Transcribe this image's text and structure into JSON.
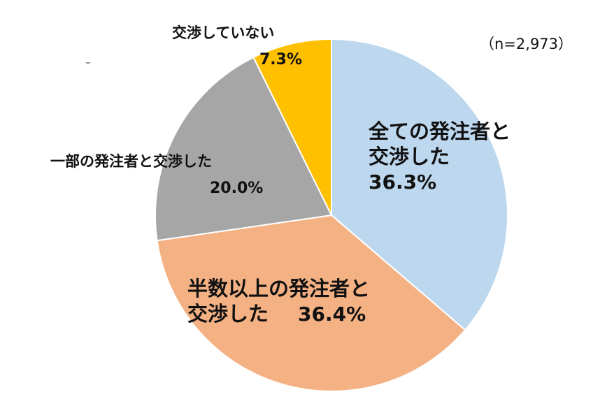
{
  "chart_data": {
    "type": "pie",
    "title": "",
    "note": "（n=2,973）",
    "slices": [
      {
        "label_lines": [
          "全ての発注者と",
          "交渉した"
        ],
        "value": 36.3,
        "value_label": "36.3%",
        "color": "#bdd7ee"
      },
      {
        "label_lines": [
          "半数以上の発注者と",
          "交渉した"
        ],
        "value": 36.4,
        "value_label": "36.4%",
        "color": "#f4b183"
      },
      {
        "label_lines": [
          "一部の発注者と交渉した"
        ],
        "value": 20.0,
        "value_label": "20.0%",
        "color": "#a6a6a6"
      },
      {
        "label_lines": [
          "交渉していない"
        ],
        "value": 7.3,
        "value_label": "7.3%",
        "color": "#ffc000"
      }
    ],
    "start_angle": "12 o'clock",
    "direction": "clockwise",
    "border_color": "#ffffff"
  }
}
